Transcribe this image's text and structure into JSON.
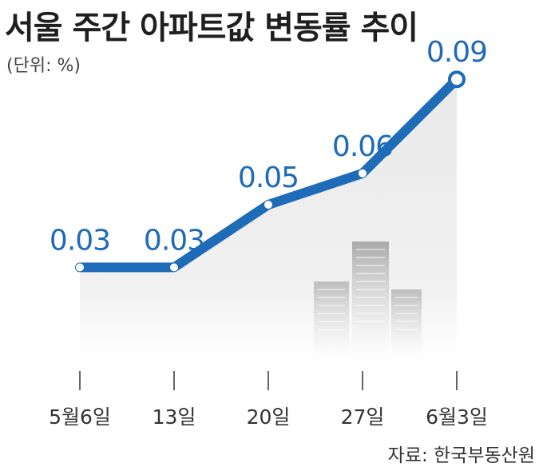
{
  "title": "서울 주간 아파트값 변동률 추이",
  "unit": "(단위: %)",
  "source": "자료: 한국부동산원",
  "colors": {
    "line": "#1e6bb8",
    "area": "#e8e8e8",
    "marker_fill": "#ffffff"
  },
  "chart_data": {
    "type": "line",
    "title": "서울 주간 아파트값 변동률 추이",
    "categories": [
      "5월6일",
      "13일",
      "20일",
      "27일",
      "6월3일"
    ],
    "series": [
      {
        "values": [
          0.03,
          0.03,
          0.05,
          0.06,
          0.09
        ]
      }
    ],
    "data_labels": [
      "0.03",
      "0.03",
      "0.05",
      "0.06",
      "0.09"
    ],
    "ylim": [
      0,
      0.1
    ],
    "grid": false,
    "legend": "none"
  }
}
